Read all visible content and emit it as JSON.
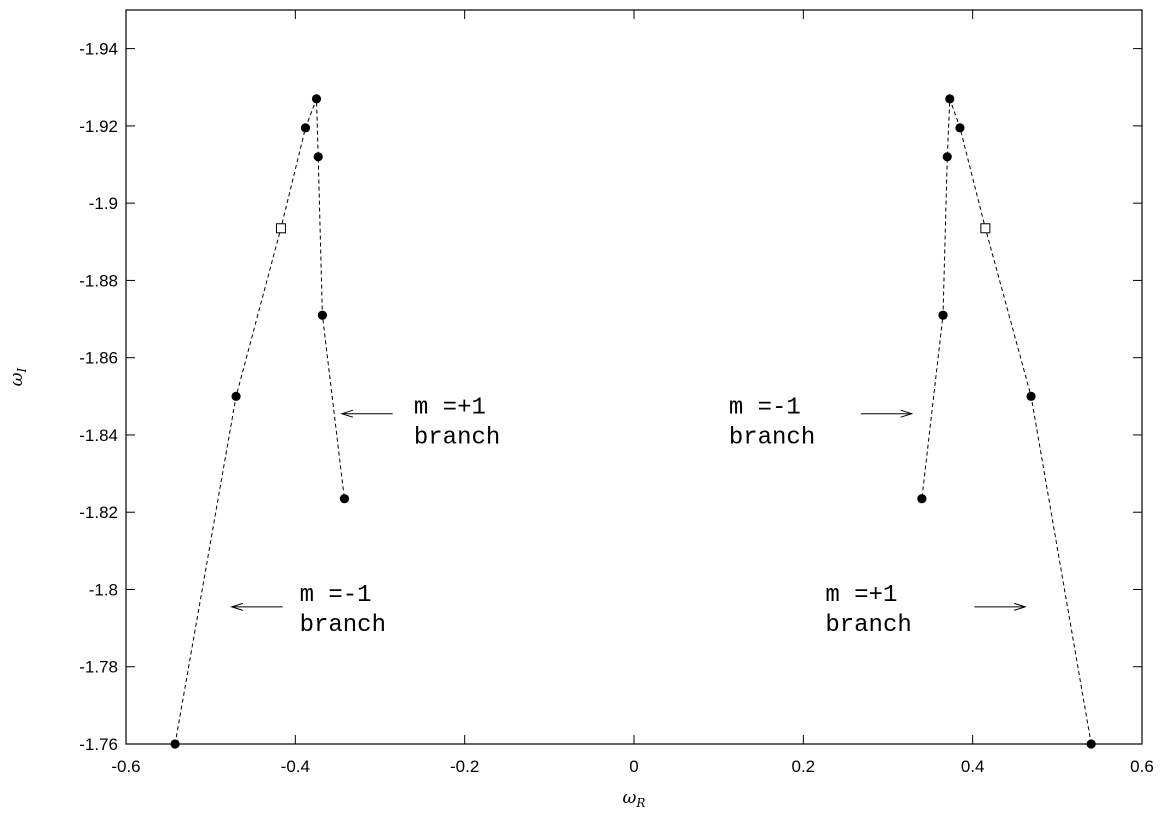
{
  "chart_data": {
    "type": "scatter",
    "xlabel": "ω",
    "xlabel_sub": "R",
    "ylabel": "ω",
    "ylabel_sub": "I",
    "xlim": [
      -0.6,
      0.6
    ],
    "ylim": [
      -1.76,
      -1.95
    ],
    "x_ticks": [
      -0.6,
      -0.4,
      -0.2,
      0,
      0.2,
      0.4,
      0.6
    ],
    "x_tick_labels": [
      "-0.6",
      "-0.4",
      "-0.2",
      "0",
      "0.2",
      "0.4",
      "0.6"
    ],
    "y_ticks": [
      -1.94,
      -1.92,
      -1.9,
      -1.88,
      -1.86,
      -1.84,
      -1.82,
      -1.8,
      -1.78,
      -1.76
    ],
    "y_tick_labels": [
      "-1.94",
      "-1.92",
      "-1.9",
      "-1.88",
      "-1.86",
      "-1.84",
      "-1.82",
      "-1.8",
      "-1.78",
      "-1.76"
    ],
    "grid": false,
    "series": [
      {
        "points": [
          {
            "x": -0.542,
            "y": -1.76,
            "marker": "filled-circle"
          },
          {
            "x": -0.47,
            "y": -1.85,
            "marker": "filled-circle"
          },
          {
            "x": -0.417,
            "y": -1.8935,
            "marker": "open-square"
          },
          {
            "x": -0.388,
            "y": -1.9195,
            "marker": "filled-circle"
          },
          {
            "x": -0.375,
            "y": -1.927,
            "marker": "filled-circle"
          },
          {
            "x": -0.373,
            "y": -1.912,
            "marker": "filled-circle"
          },
          {
            "x": -0.368,
            "y": -1.871,
            "marker": "filled-circle"
          },
          {
            "x": -0.342,
            "y": -1.8235,
            "marker": "filled-circle"
          }
        ]
      },
      {
        "points": [
          {
            "x": 0.54,
            "y": -1.76,
            "marker": "filled-circle"
          },
          {
            "x": 0.469,
            "y": -1.85,
            "marker": "filled-circle"
          },
          {
            "x": 0.415,
            "y": -1.8935,
            "marker": "open-square"
          },
          {
            "x": 0.385,
            "y": -1.9195,
            "marker": "filled-circle"
          },
          {
            "x": 0.373,
            "y": -1.927,
            "marker": "filled-circle"
          },
          {
            "x": 0.37,
            "y": -1.912,
            "marker": "filled-circle"
          },
          {
            "x": 0.365,
            "y": -1.871,
            "marker": "filled-circle"
          },
          {
            "x": 0.34,
            "y": -1.8235,
            "marker": "filled-circle"
          }
        ]
      }
    ],
    "annotations": [
      {
        "id": "left-upper",
        "lines": [
          "m =+1",
          "branch"
        ],
        "x": -0.26,
        "y": -1.8455,
        "arrow_dir": "left",
        "arrow": [
          -0.285,
          -1.8455,
          -0.345,
          -1.8455
        ]
      },
      {
        "id": "left-lower",
        "lines": [
          "m =-1",
          "branch"
        ],
        "x": -0.395,
        "y": -1.797,
        "arrow_dir": "left",
        "arrow": [
          -0.415,
          -1.7955,
          -0.475,
          -1.7955
        ]
      },
      {
        "id": "right-upper",
        "lines": [
          "m =-1",
          "branch"
        ],
        "x": 0.112,
        "y": -1.8455,
        "arrow_dir": "right",
        "arrow": [
          0.268,
          -1.8455,
          0.328,
          -1.8455
        ]
      },
      {
        "id": "right-lower",
        "lines": [
          "m =+1",
          "branch"
        ],
        "x": 0.226,
        "y": -1.797,
        "arrow_dir": "right",
        "arrow": [
          0.402,
          -1.7955,
          0.462,
          -1.7955
        ]
      }
    ]
  }
}
